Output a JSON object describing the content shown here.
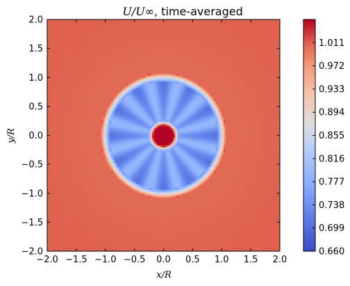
{
  "chart_data": {
    "type": "heatmap",
    "title_math": "U/U∞",
    "title_text": ", time-averaged",
    "xlabel": "x/R",
    "ylabel": "y/R",
    "xlim": [
      -2.0,
      2.0
    ],
    "ylim": [
      -2.0,
      2.0
    ],
    "xticks": [
      "−2.0",
      "−1.5",
      "−1.0",
      "−0.5",
      "0.0",
      "0.5",
      "1.0",
      "1.5",
      "2.0"
    ],
    "yticks": [
      "−2.0",
      "−1.5",
      "−1.0",
      "−0.5",
      "0.0",
      "0.5",
      "1.0",
      "1.5",
      "2.0"
    ],
    "colorbar": {
      "min": 0.66,
      "max": 1.05,
      "ticks": [
        "0.660",
        "0.699",
        "0.738",
        "0.777",
        "0.816",
        "0.855",
        "0.894",
        "0.933",
        "0.972",
        "1.011"
      ],
      "colormap": "coolwarm"
    },
    "field": {
      "freestream_value": 1.01,
      "wake_radius": 1.0,
      "wake_value_min": 0.7,
      "wake_value_max": 0.79,
      "hub_radius": 0.18,
      "hub_value": 1.05,
      "blade_count": 12
    },
    "grid": false
  },
  "colors": {
    "coolwarm_low": "#3b4cc0",
    "coolwarm_mid": "#dddddd",
    "coolwarm_high": "#b40426",
    "frame": "#000000"
  }
}
